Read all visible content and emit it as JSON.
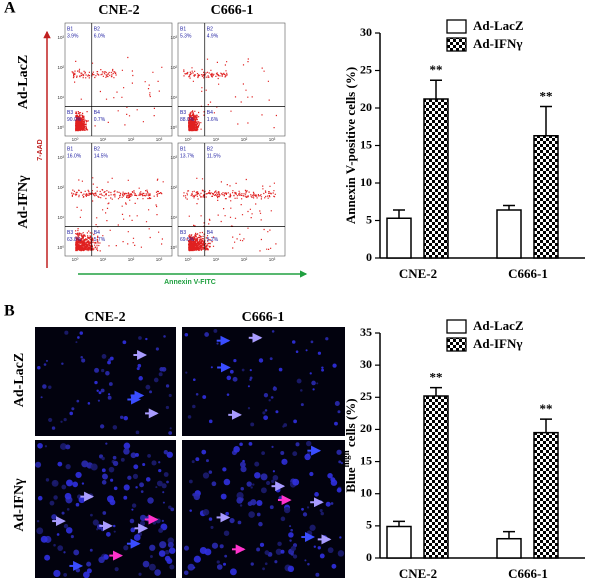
{
  "panels": {
    "a": "A",
    "b": "B"
  },
  "flow": {
    "columns": [
      "CNE-2",
      "C666-1"
    ],
    "rows": [
      "Ad-LacZ",
      "Ad-IFNγ"
    ],
    "y_axis_label": "7-AAD",
    "x_axis_label": "Annexin V-FITC",
    "ticks": [
      "10⁰",
      "10¹",
      "10²",
      "10³"
    ],
    "plots": [
      [
        {
          "quadrants": [
            {
              "label": "B1",
              "value": "3.9%"
            },
            {
              "label": "B2",
              "value": "6.0%"
            },
            {
              "label": "B3",
              "value": "90.0%"
            },
            {
              "label": "B4",
              "value": "0.7%"
            }
          ]
        },
        {
          "quadrants": [
            {
              "label": "B1",
              "value": "5.3%"
            },
            {
              "label": "B2",
              "value": "4.9%"
            },
            {
              "label": "B3",
              "value": "88.0%"
            },
            {
              "label": "B4",
              "value": "1.6%"
            }
          ]
        }
      ],
      [
        {
          "quadrants": [
            {
              "label": "B1",
              "value": "16.0%"
            },
            {
              "label": "B2",
              "value": "14.5%"
            },
            {
              "label": "B3",
              "value": "63.8%"
            },
            {
              "label": "B4",
              "value": "5.7%"
            }
          ]
        },
        {
          "quadrants": [
            {
              "label": "B1",
              "value": "13.7%"
            },
            {
              "label": "B2",
              "value": "11.5%"
            },
            {
              "label": "B3",
              "value": "69.5%"
            },
            {
              "label": "B4",
              "value": "5.2%"
            }
          ]
        }
      ]
    ]
  },
  "images": {
    "columns": [
      "CNE-2",
      "C666-1"
    ],
    "rows": [
      "Ad-LacZ",
      "Ad-IFNγ"
    ]
  },
  "chart_data": [
    {
      "type": "bar",
      "ylabel": "Annexin V-positive cells (%)",
      "categories": [
        "CNE-2",
        "C666-1"
      ],
      "series": [
        {
          "name": "Ad-LacZ",
          "color": "#ffffff",
          "values": [
            5.3,
            6.4
          ],
          "errors": [
            1.1,
            0.6
          ]
        },
        {
          "name": "Ad-IFNγ",
          "color": "checkered",
          "values": [
            21.2,
            16.3
          ],
          "errors": [
            2.5,
            3.9
          ],
          "annotations": [
            "**",
            "**"
          ]
        }
      ],
      "ylim": [
        0,
        30
      ],
      "yticks": [
        0,
        5,
        10,
        15,
        20,
        25,
        30
      ]
    },
    {
      "type": "bar",
      "ylabel": "Blue",
      "ylabel_superscript": "high",
      "ylabel_suffix": " cells (%)",
      "categories": [
        "CNE-2",
        "C666-1"
      ],
      "series": [
        {
          "name": "Ad-LacZ",
          "color": "#ffffff",
          "values": [
            4.9,
            3.0
          ],
          "errors": [
            0.8,
            1.1
          ]
        },
        {
          "name": "Ad-IFNγ",
          "color": "checkered",
          "values": [
            25.2,
            19.5
          ],
          "errors": [
            1.3,
            2.1
          ],
          "annotations": [
            "**",
            "**"
          ]
        }
      ],
      "ylim": [
        0,
        35
      ],
      "yticks": [
        0,
        5,
        10,
        15,
        20,
        25,
        30,
        35
      ]
    }
  ]
}
